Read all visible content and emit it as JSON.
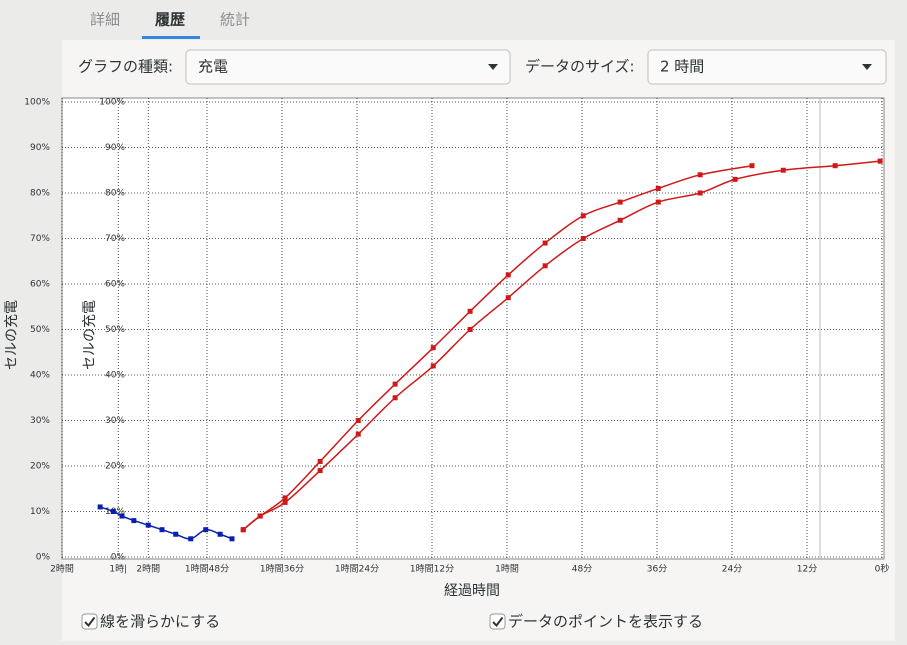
{
  "tabs": [
    "詳細",
    "履歴",
    "統計"
  ],
  "active_tab": 1,
  "controls": {
    "graph_type_label": "グラフの種類:",
    "graph_type": "充電",
    "data_size_label": "データのサイズ:",
    "data_size": "2 時間"
  },
  "chart_data": {
    "type": "line",
    "y_label": "セルの充電",
    "x_label": "経過時間",
    "xlim": [
      131.2,
      0
    ],
    "ylim": [
      0,
      100
    ],
    "grid": true,
    "xticks": [
      {
        "value": 131.2,
        "label": "2時間"
      },
      {
        "value": 122.2,
        "label": "1時|"
      },
      {
        "value": 117.4,
        "label": "2時間"
      },
      {
        "value": 108,
        "label": "1時間48分"
      },
      {
        "value": 96,
        "label": "1時間36分"
      },
      {
        "value": 84,
        "label": "1時間24分"
      },
      {
        "value": 72,
        "label": "1時間12分"
      },
      {
        "value": 60,
        "label": "1時間"
      },
      {
        "value": 48,
        "label": "48分"
      },
      {
        "value": 36,
        "label": "36分"
      },
      {
        "value": 24,
        "label": "24分"
      },
      {
        "value": 12,
        "label": "12分"
      },
      {
        "value": 0,
        "label": "0秒"
      }
    ],
    "yticks": [
      {
        "value": 0,
        "label": "0%"
      },
      {
        "value": 10,
        "label": "10%"
      },
      {
        "value": 20,
        "label": "20%"
      },
      {
        "value": 30,
        "label": "30%"
      },
      {
        "value": 40,
        "label": "40%"
      },
      {
        "value": 50,
        "label": "50%"
      },
      {
        "value": 60,
        "label": "60%"
      },
      {
        "value": 70,
        "label": "70%"
      },
      {
        "value": 80,
        "label": "80%"
      },
      {
        "value": 90,
        "label": "90%"
      },
      {
        "value": 100,
        "label": "100%"
      }
    ],
    "series": [
      {
        "color": "#0a1fb0",
        "x": [
          125.1,
          123,
          121.6,
          119.7,
          117.4,
          115.2,
          113,
          110.6,
          108.2,
          105.9,
          104
        ],
        "values": [
          11,
          10,
          9,
          8,
          7,
          6,
          5,
          4,
          6,
          5,
          4
        ]
      },
      {
        "color": "#d01818",
        "x": [
          102.2,
          99.5,
          95.5,
          89.9,
          83.8,
          77.9,
          71.8,
          65.9,
          59.8,
          53.9,
          47.8,
          41.9,
          35.8,
          29.1,
          20.8
        ],
        "values": [
          6,
          9,
          13,
          21,
          30,
          38,
          46,
          54,
          62,
          69,
          75,
          78,
          81,
          84,
          86
        ]
      },
      {
        "color": "#d01818",
        "x": [
          102.2,
          99.5,
          95.5,
          89.9,
          83.8,
          77.9,
          71.8,
          65.9,
          59.8,
          53.9,
          47.8,
          41.9,
          35.8,
          29.1,
          23.5,
          15.8,
          7.5,
          0.3
        ],
        "values": [
          6,
          9,
          12,
          19,
          27,
          35,
          42,
          50,
          57,
          64,
          70,
          74,
          78,
          80,
          83,
          85,
          86,
          87
        ]
      }
    ]
  },
  "options": [
    {
      "label": "線を滑らかにする",
      "checked": true
    },
    {
      "label": "データのポイントを表示する",
      "checked": true
    }
  ]
}
